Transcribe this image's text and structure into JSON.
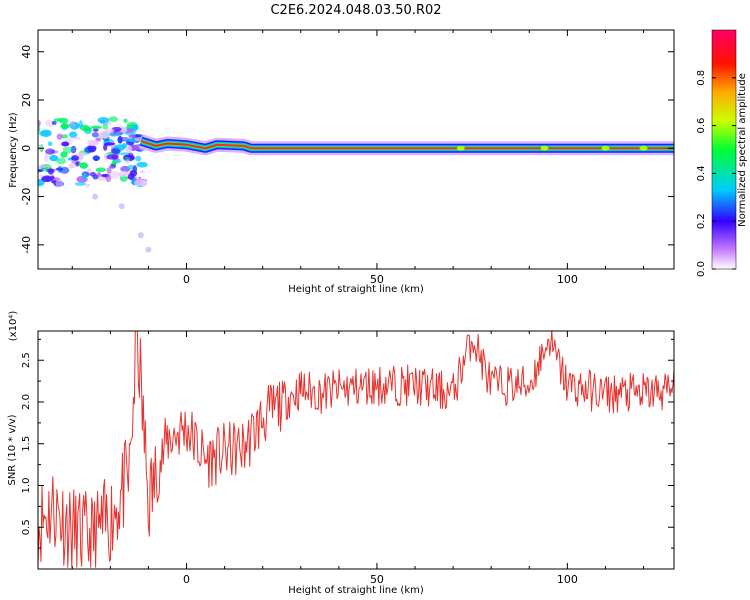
{
  "figure_title": "C2E6.2024.048.03.50.R02",
  "chart_data": [
    {
      "type": "heatmap",
      "title": "C2E6.2024.048.03.50.R02",
      "xlabel": "Height of straight line (km)",
      "ylabel": "Frequency (Hz)",
      "xlim": [
        -39,
        128
      ],
      "ylim": [
        -50,
        49
      ],
      "x_ticks": [
        0,
        50,
        100
      ],
      "y_ticks": [
        -40,
        -20,
        0,
        20,
        40
      ],
      "x_tick_labels": [
        "0",
        "50",
        "100"
      ],
      "y_tick_labels": [
        "-40",
        "-20",
        "0",
        "20",
        "40"
      ],
      "colorbar": {
        "label": "Normalized spectral amplitude",
        "range": [
          0,
          1
        ],
        "ticks": [
          0.0,
          0.2,
          0.4,
          0.6,
          0.8
        ],
        "tick_labels": [
          "0.0",
          "0.2",
          "0.4",
          "0.6",
          "0.8"
        ],
        "colormap": "rainbow (white-violet-blue-cyan-green-yellow-orange-red-magenta)"
      },
      "dominant_frequency_track": [
        {
          "x": -12,
          "y": 3
        },
        {
          "x": -8,
          "y": 1
        },
        {
          "x": -5,
          "y": 2
        },
        {
          "x": 0,
          "y": 1.5
        },
        {
          "x": 5,
          "y": 0
        },
        {
          "x": 8,
          "y": 1.5
        },
        {
          "x": 15,
          "y": 1
        },
        {
          "x": 17,
          "y": 0
        },
        {
          "x": 128,
          "y": 0
        }
      ]
    },
    {
      "type": "line",
      "title": "",
      "xlabel": "Height of straight line (km)",
      "ylabel": "SNR (10 * v/v)",
      "y_multiplier": "(x10⁴)",
      "xlim": [
        -39,
        128
      ],
      "ylim": [
        0,
        2.85
      ],
      "x_ticks": [
        0,
        50,
        100
      ],
      "y_ticks": [
        0.5,
        1.0,
        1.5,
        2.0,
        2.5
      ],
      "x_tick_labels": [
        "0",
        "50",
        "100"
      ],
      "y_tick_labels": [
        "0.5",
        "1.0",
        "1.5",
        "2.0",
        "2.5"
      ],
      "series": [
        {
          "color": "#e8322d",
          "x": [
            -39,
            -35,
            -30,
            -25,
            -20,
            -15,
            -13,
            -10,
            -5,
            0,
            5,
            10,
            15,
            20,
            25,
            30,
            35,
            40,
            50,
            60,
            70,
            75,
            80,
            90,
            95,
            100,
            110,
            120,
            128
          ],
          "y": [
            0.55,
            0.75,
            0.45,
            0.35,
            0.6,
            1.1,
            2.85,
            0.8,
            1.55,
            1.7,
            1.3,
            1.4,
            1.45,
            1.8,
            2.0,
            2.15,
            2.1,
            2.15,
            2.2,
            2.2,
            2.1,
            2.8,
            2.2,
            2.2,
            2.75,
            2.2,
            2.1,
            2.1,
            2.15
          ]
        }
      ]
    }
  ]
}
